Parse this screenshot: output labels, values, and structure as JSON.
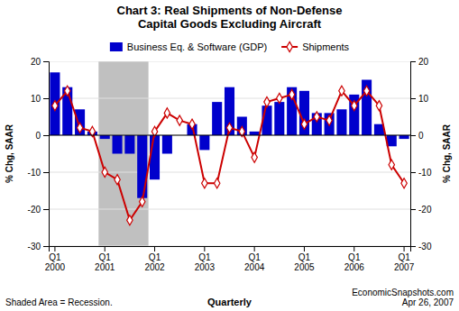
{
  "chart_data": {
    "type": "bar",
    "title": "Chart 3: Real Shipments of Non-Defense\nCapital Goods Excluding Aircraft",
    "xlabel": "Quarterly",
    "ylabel": "% Chg, SAAR",
    "y2label": "% Chg, SAAR",
    "annotations": [
      "Shaded Area = Recession.",
      "EconomicSnapshots.com\nApr 26, 2007"
    ],
    "categories": [
      "Q1\n2000",
      null,
      null,
      null,
      "Q1\n2001",
      null,
      null,
      null,
      "Q1\n2002",
      null,
      null,
      null,
      "Q1\n2003",
      null,
      null,
      null,
      "Q1\n2004",
      null,
      null,
      null,
      "Q1\n2005",
      null,
      null,
      null,
      "Q1\n2006",
      null,
      null,
      null,
      "Q1\n2007"
    ],
    "series": [
      {
        "name": "Business Eq. & Software (GDP)",
        "type": "bar",
        "color": "#0000CC",
        "values": [
          17,
          13,
          7,
          1,
          -1,
          -5,
          -5,
          -17,
          -12,
          -5,
          0,
          3,
          -4,
          9,
          13,
          5,
          1,
          8,
          9,
          13,
          12,
          6,
          6,
          7,
          11,
          15,
          3,
          -3,
          -1
        ]
      },
      {
        "name": "Shipments",
        "type": "line",
        "axis": "y2",
        "color": "#CC0000",
        "marker": "diamond",
        "values": [
          8,
          12,
          2,
          1,
          -10,
          -12,
          -23,
          -18,
          1,
          6,
          4,
          3,
          -13,
          -13,
          2,
          1,
          -6,
          9,
          10,
          11,
          3,
          5,
          4,
          12,
          8,
          12,
          8,
          -8,
          -13
        ]
      }
    ],
    "shaded": {
      "from": 4,
      "to": 8,
      "color": "#C0C0C0"
    },
    "ylim": [
      -30,
      20
    ],
    "yticks": [
      -30,
      -20,
      -10,
      0,
      10,
      20
    ],
    "y2lim": [
      -30,
      20
    ],
    "y2ticks": [
      -30,
      -20,
      -10,
      0,
      10,
      20
    ],
    "grid": true,
    "legend": "top"
  }
}
